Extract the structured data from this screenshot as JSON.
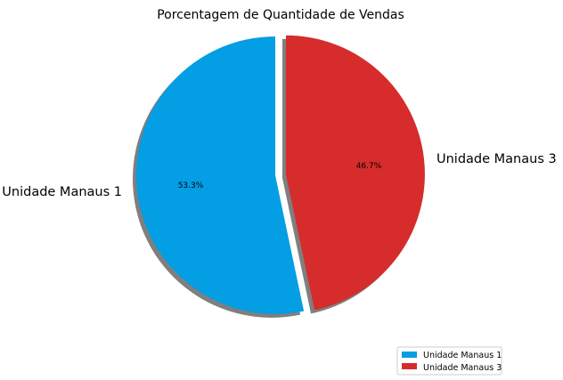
{
  "chart_data": {
    "type": "pie",
    "title": "Porcentagem de Quantidade de Vendas",
    "slices": [
      {
        "label": "Unidade Manaus 1",
        "value": 53.3,
        "pct_label": "53.3%",
        "color": "#039ee3",
        "exploded": false
      },
      {
        "label": "Unidade Manaus 3",
        "value": 46.7,
        "pct_label": "46.7%",
        "color": "#d62c2c",
        "exploded": true
      }
    ],
    "start_angle_deg": 90,
    "shadow": true,
    "legend": {
      "position": "lower-right",
      "entries": [
        "Unidade Manaus 1",
        "Unidade Manaus 3"
      ]
    }
  }
}
